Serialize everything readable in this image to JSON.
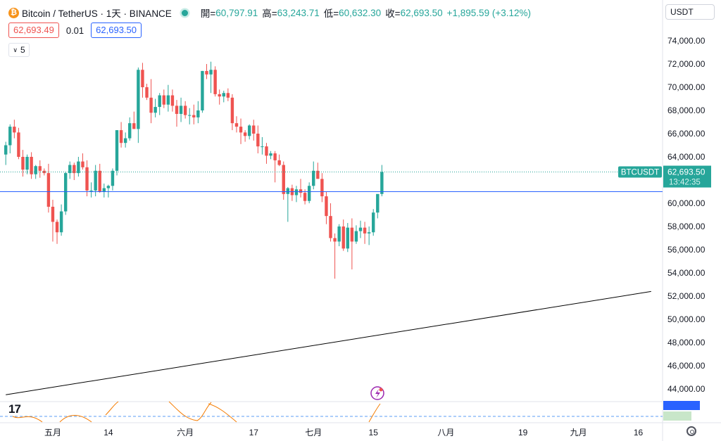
{
  "header": {
    "symbol": "Bitcoin / TetherUS · 1天 · BINANCE",
    "open_label": "開=",
    "open_value": "60,797.91",
    "high_label": "高=",
    "high_value": "63,243.71",
    "low_label": "低=",
    "low_value": "60,632.30",
    "close_label": "收=",
    "close_value": "62,693.50",
    "change": "+1,895.59 (+3.12%)",
    "logo_glyph": "₿"
  },
  "trade": {
    "sell": "62,693.49",
    "spread": "0.01",
    "buy": "62,693.50"
  },
  "indicator_count": "5",
  "currency": "USDT",
  "tv_logo": "17",
  "colors": {
    "up": "#26a69a",
    "down": "#ef5350",
    "hline": "#2962ff",
    "trend": "#000000"
  },
  "chart_data": {
    "type": "candlestick",
    "symbol_label": "BTCUSDT",
    "last_price": "62,693.50",
    "countdown": "13:42:35",
    "ylim": [
      43000,
      75500
    ],
    "y_ticks": [
      44000,
      46000,
      48000,
      50000,
      52000,
      54000,
      56000,
      58000,
      60000,
      62000,
      64000,
      66000,
      68000,
      70000,
      72000,
      74000
    ],
    "x_start_index": 0,
    "x_ticks": [
      {
        "label": "五月",
        "index": 11
      },
      {
        "label": "14",
        "index": 24
      },
      {
        "label": "六月",
        "index": 42
      },
      {
        "label": "17",
        "index": 58
      },
      {
        "label": "七月",
        "index": 72
      },
      {
        "label": "15",
        "index": 86
      },
      {
        "label": "八月",
        "index": 103
      },
      {
        "label": "19",
        "index": 121
      },
      {
        "label": "九月",
        "index": 134
      },
      {
        "label": "16",
        "index": 148
      }
    ],
    "horizontal_line": 61000,
    "trend_line": [
      {
        "index": 0,
        "price": 43500
      },
      {
        "index": 151,
        "price": 52400
      }
    ],
    "candles": [
      [
        64200,
        65300,
        63300,
        65000
      ],
      [
        65000,
        66800,
        64300,
        66600
      ],
      [
        66600,
        67200,
        65600,
        66100
      ],
      [
        66100,
        66500,
        63800,
        64000
      ],
      [
        64000,
        64600,
        62300,
        62900
      ],
      [
        62900,
        64200,
        62500,
        64000
      ],
      [
        64000,
        64400,
        62100,
        62500
      ],
      [
        62500,
        63300,
        62100,
        63200
      ],
      [
        63200,
        63700,
        62200,
        62800
      ],
      [
        62800,
        63000,
        62400,
        62600
      ],
      [
        62600,
        63400,
        59200,
        59700
      ],
      [
        59700,
        60300,
        56700,
        58400
      ],
      [
        58400,
        58600,
        56500,
        57500
      ],
      [
        57500,
        59900,
        57200,
        59300
      ],
      [
        59300,
        62700,
        59000,
        62600
      ],
      [
        62600,
        63600,
        62100,
        63300
      ],
      [
        63300,
        63500,
        62000,
        62600
      ],
      [
        62600,
        64000,
        62300,
        63600
      ],
      [
        63600,
        64300,
        62900,
        63100
      ],
      [
        63100,
        63700,
        60600,
        61100
      ],
      [
        61100,
        61800,
        60500,
        61100
      ],
      [
        61100,
        63300,
        60600,
        62800
      ],
      [
        62800,
        63400,
        60900,
        61000
      ],
      [
        61000,
        61700,
        60500,
        61300
      ],
      [
        61300,
        61600,
        60500,
        61500
      ],
      [
        61500,
        63000,
        61100,
        62800
      ],
      [
        62800,
        66300,
        62400,
        66300
      ],
      [
        66300,
        67000,
        64800,
        65200
      ],
      [
        65200,
        66100,
        64800,
        65600
      ],
      [
        65600,
        67400,
        65400,
        66900
      ],
      [
        66900,
        67900,
        66400,
        66400
      ],
      [
        66400,
        71700,
        65200,
        71500
      ],
      [
        71500,
        72100,
        69100,
        70000
      ],
      [
        70000,
        70300,
        68900,
        69100
      ],
      [
        69100,
        70700,
        66900,
        67800
      ],
      [
        67800,
        69000,
        67400,
        68300
      ],
      [
        68300,
        69500,
        67600,
        69300
      ],
      [
        69300,
        69800,
        68200,
        68500
      ],
      [
        68500,
        70200,
        67900,
        69300
      ],
      [
        69300,
        69800,
        67900,
        68400
      ],
      [
        68400,
        68900,
        66600,
        67700
      ],
      [
        67700,
        69100,
        67000,
        68400
      ],
      [
        68400,
        68800,
        67300,
        67600
      ],
      [
        67600,
        68200,
        66800,
        67600
      ],
      [
        67600,
        68500,
        66800,
        67400
      ],
      [
        67400,
        68800,
        66900,
        68000
      ],
      [
        68000,
        71400,
        67800,
        71400
      ],
      [
        71400,
        72000,
        70700,
        71100
      ],
      [
        71100,
        72200,
        69500,
        71500
      ],
      [
        71500,
        71800,
        69200,
        69400
      ],
      [
        69400,
        69800,
        68500,
        69200
      ],
      [
        69200,
        69700,
        68700,
        69500
      ],
      [
        69500,
        69900,
        68800,
        69100
      ],
      [
        69100,
        69400,
        66300,
        66900
      ],
      [
        66900,
        67500,
        66100,
        66600
      ],
      [
        66600,
        67300,
        65100,
        66100
      ],
      [
        66100,
        66300,
        65300,
        65800
      ],
      [
        65800,
        66800,
        65500,
        66700
      ],
      [
        66700,
        67200,
        65400,
        66000
      ],
      [
        66000,
        66700,
        64300,
        64900
      ],
      [
        64900,
        65700,
        64200,
        64900
      ],
      [
        64900,
        65200,
        63400,
        64100
      ],
      [
        64100,
        64500,
        63800,
        64300
      ],
      [
        64300,
        64500,
        61800,
        63700
      ],
      [
        63700,
        64200,
        63200,
        63300
      ],
      [
        63300,
        63600,
        60300,
        60800
      ],
      [
        60800,
        61400,
        58400,
        61300
      ],
      [
        61300,
        61600,
        60200,
        60700
      ],
      [
        60700,
        61500,
        60100,
        61200
      ],
      [
        61200,
        62100,
        60500,
        60900
      ],
      [
        60900,
        61200,
        59900,
        60200
      ],
      [
        60200,
        61800,
        60000,
        61500
      ],
      [
        61500,
        63600,
        61200,
        62800
      ],
      [
        62800,
        63500,
        62200,
        62100
      ],
      [
        62100,
        62600,
        60100,
        60600
      ],
      [
        60600,
        61000,
        58200,
        58900
      ],
      [
        58900,
        60000,
        56700,
        57000
      ],
      [
        57000,
        57400,
        53500,
        56700
      ],
      [
        56700,
        58200,
        56300,
        58000
      ],
      [
        58000,
        58600,
        55900,
        56100
      ],
      [
        56100,
        58300,
        55800,
        57900
      ],
      [
        57900,
        58700,
        54300,
        56700
      ],
      [
        56700,
        58100,
        56500,
        57600
      ],
      [
        57600,
        58500,
        57000,
        57900
      ],
      [
        57900,
        58400,
        56500,
        57400
      ],
      [
        57400,
        58000,
        56400,
        57500
      ],
      [
        57500,
        59500,
        57200,
        59200
      ],
      [
        59200,
        60600,
        58700,
        60800
      ],
      [
        60800,
        63300,
        60600,
        62693.5
      ]
    ]
  }
}
